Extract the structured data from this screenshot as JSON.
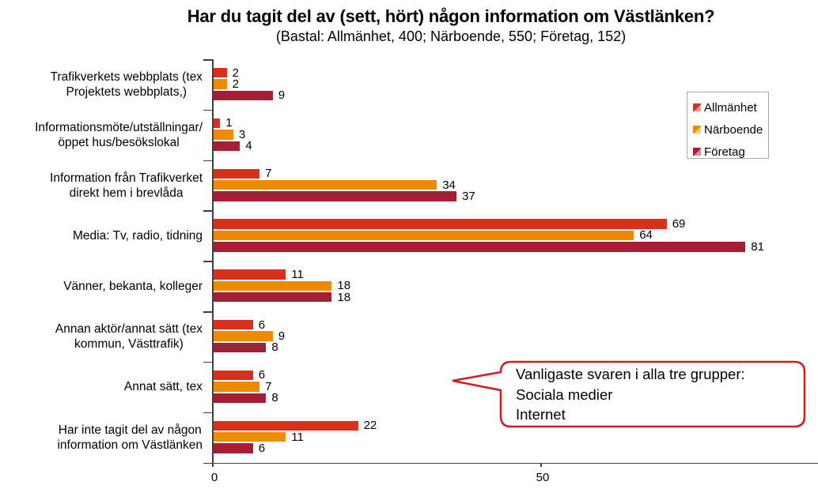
{
  "chart_data": {
    "type": "bar",
    "orientation": "horizontal",
    "title": "Har du tagit del av (sett, hört) någon information om Västlänken?",
    "subtitle": "(Bastal: Allmänhet, 400; Närboende, 550; Företag, 152)",
    "categories": [
      "Trafikverkets webbplats (tex\nProjektets webbplats,)",
      "Informationsmöte/utställningar/\nöppet hus/besökslokal",
      "Information från Trafikverket\ndirekt hem i brevlåda",
      "Media: Tv, radio, tidning",
      "Vänner, bekanta, kolleger",
      "Annan aktör/annat sätt (tex\nkommun, Västtrafik)",
      "Annat sätt, tex",
      "Har inte tagit del av någon\ninformation om Västlänken"
    ],
    "series": [
      {
        "name": "Allmänhet",
        "color": "#D6301F",
        "marker_light": "#F0A195",
        "values": [
          2,
          1,
          7,
          69,
          11,
          6,
          6,
          22
        ]
      },
      {
        "name": "Närboende",
        "color": "#EC8A00",
        "marker_light": "#F6C98F",
        "values": [
          2,
          3,
          34,
          64,
          18,
          9,
          7,
          11
        ]
      },
      {
        "name": "Företag",
        "color": "#A41E35",
        "marker_light": "#CE8FA0",
        "values": [
          9,
          4,
          37,
          81,
          18,
          8,
          8,
          6
        ]
      }
    ],
    "x_ticks": [
      0,
      50
    ],
    "xlim": [
      0,
      92
    ],
    "grid": false,
    "legend_position": "top-right",
    "axis_color": "#404040",
    "annotation": {
      "lines": [
        "Vanligaste svaren i alla tre grupper:",
        "Sociala medier",
        "Internet"
      ],
      "border_color": "#CB2026"
    }
  }
}
